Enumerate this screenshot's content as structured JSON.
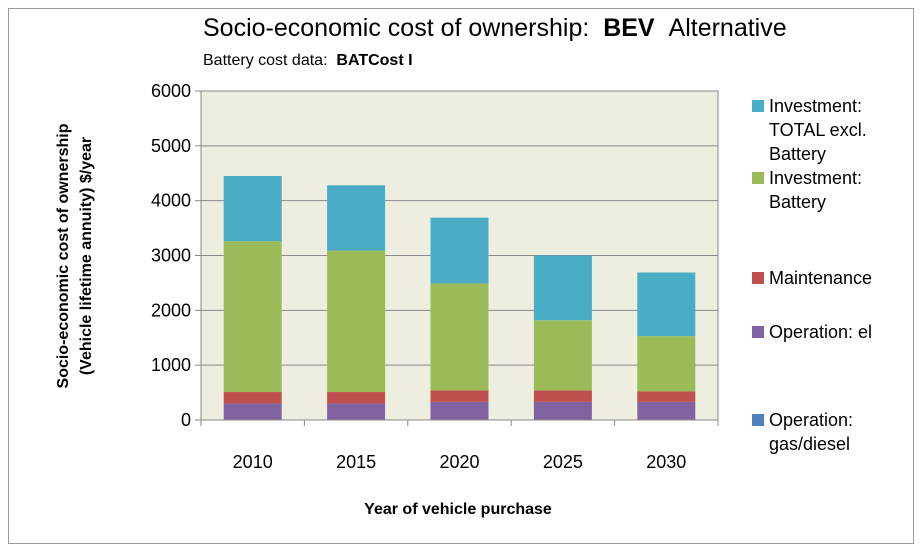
{
  "chart_data": {
    "type": "bar",
    "stacked": true,
    "title_main": "Socio-economic cost of ownership:",
    "title_bold": "BEV",
    "title_end": "Alternative",
    "subtitle_main": "Battery cost data:",
    "subtitle_bold": "BATCost I",
    "xlabel": "Year of vehicle purchase",
    "ylabel_line1": "Socio-economic cost of ownership",
    "ylabel_line2": "(Vehicle lifetime annuity)  $/year",
    "categories": [
      "2010",
      "2015",
      "2020",
      "2025",
      "2030"
    ],
    "ylim": [
      0,
      6000
    ],
    "yticks": [
      "0",
      "1000",
      "2000",
      "3000",
      "4000",
      "5000",
      "6000"
    ],
    "grid": true,
    "legend_position": "right",
    "plot_background": "#eeeee0",
    "series": [
      {
        "name": "Operation: gas/diesel",
        "color": "#4f81bd",
        "values": [
          0,
          0,
          0,
          0,
          0
        ]
      },
      {
        "name": "Operation: el",
        "color": "#8064a2",
        "values": [
          300,
          300,
          330,
          330,
          330
        ]
      },
      {
        "name": "Maintenance",
        "color": "#c0504d",
        "values": [
          210,
          210,
          210,
          210,
          190
        ]
      },
      {
        "name": "Investment: Battery",
        "color": "#9bbb59",
        "values": [
          2750,
          2580,
          1950,
          1280,
          1010
        ]
      },
      {
        "name": "Investment: TOTAL excl. Battery",
        "color": "#4bacc6",
        "values": [
          1190,
          1190,
          1200,
          1180,
          1160
        ]
      }
    ],
    "legend_lines": [
      [
        "Investment:",
        "TOTAL excl.",
        "Battery"
      ],
      [
        "Investment:",
        "Battery"
      ],
      [
        "Maintenance"
      ],
      [
        "Operation: el"
      ],
      [
        "Operation:",
        "gas/diesel"
      ]
    ]
  }
}
